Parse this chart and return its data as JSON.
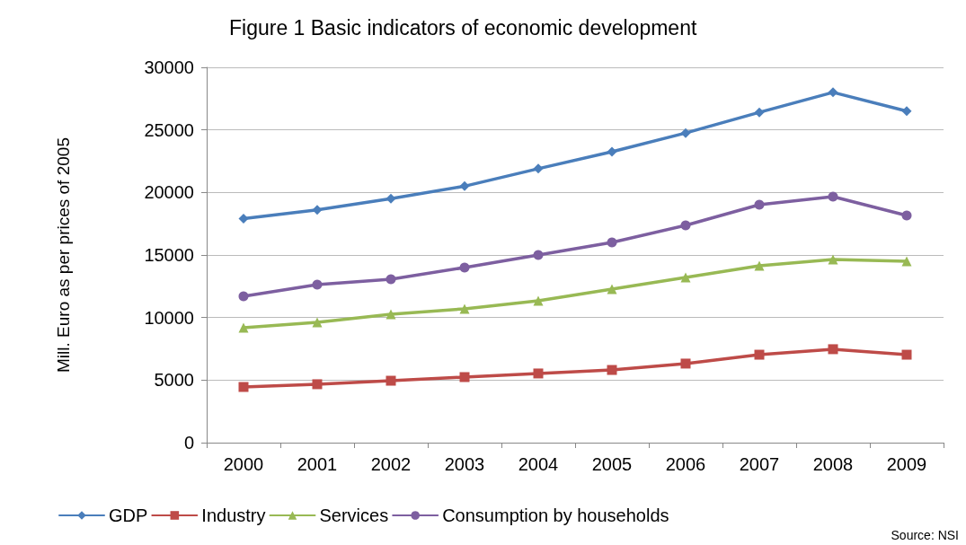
{
  "chart_data": {
    "type": "line",
    "title": "Figure 1 Basic indicators of economic development",
    "ylabel": "Mill. Euro as per prices of 2005",
    "annotations": [
      "Source: NSI"
    ],
    "categories": [
      "2000",
      "2001",
      "2002",
      "2003",
      "2004",
      "2005",
      "2006",
      "2007",
      "2008",
      "2009"
    ],
    "series": [
      {
        "name": "GDP",
        "color": "#4a7ebb",
        "marker": "diamond",
        "values": [
          17900,
          18600,
          19500,
          20500,
          21900,
          23250,
          24750,
          26400,
          28000,
          26500
        ]
      },
      {
        "name": "Industry",
        "color": "#be4b48",
        "marker": "square",
        "values": [
          4450,
          4670,
          4950,
          5240,
          5530,
          5810,
          6320,
          7030,
          7470,
          7030
        ]
      },
      {
        "name": "Services",
        "color": "#98b954",
        "marker": "triangle",
        "values": [
          9190,
          9620,
          10270,
          10700,
          11340,
          12280,
          13210,
          14140,
          14640,
          14500
        ]
      },
      {
        "name": "Consumption by households",
        "color": "#7d5fa0",
        "marker": "circle",
        "values": [
          11700,
          12630,
          13060,
          14000,
          15000,
          16000,
          17370,
          19020,
          19670,
          18160
        ]
      }
    ],
    "ylim": [
      0,
      30000
    ],
    "yticks": [
      0,
      5000,
      10000,
      15000,
      20000,
      25000,
      30000
    ],
    "grid": "y",
    "legend": "bottom",
    "line_style": "solid"
  }
}
